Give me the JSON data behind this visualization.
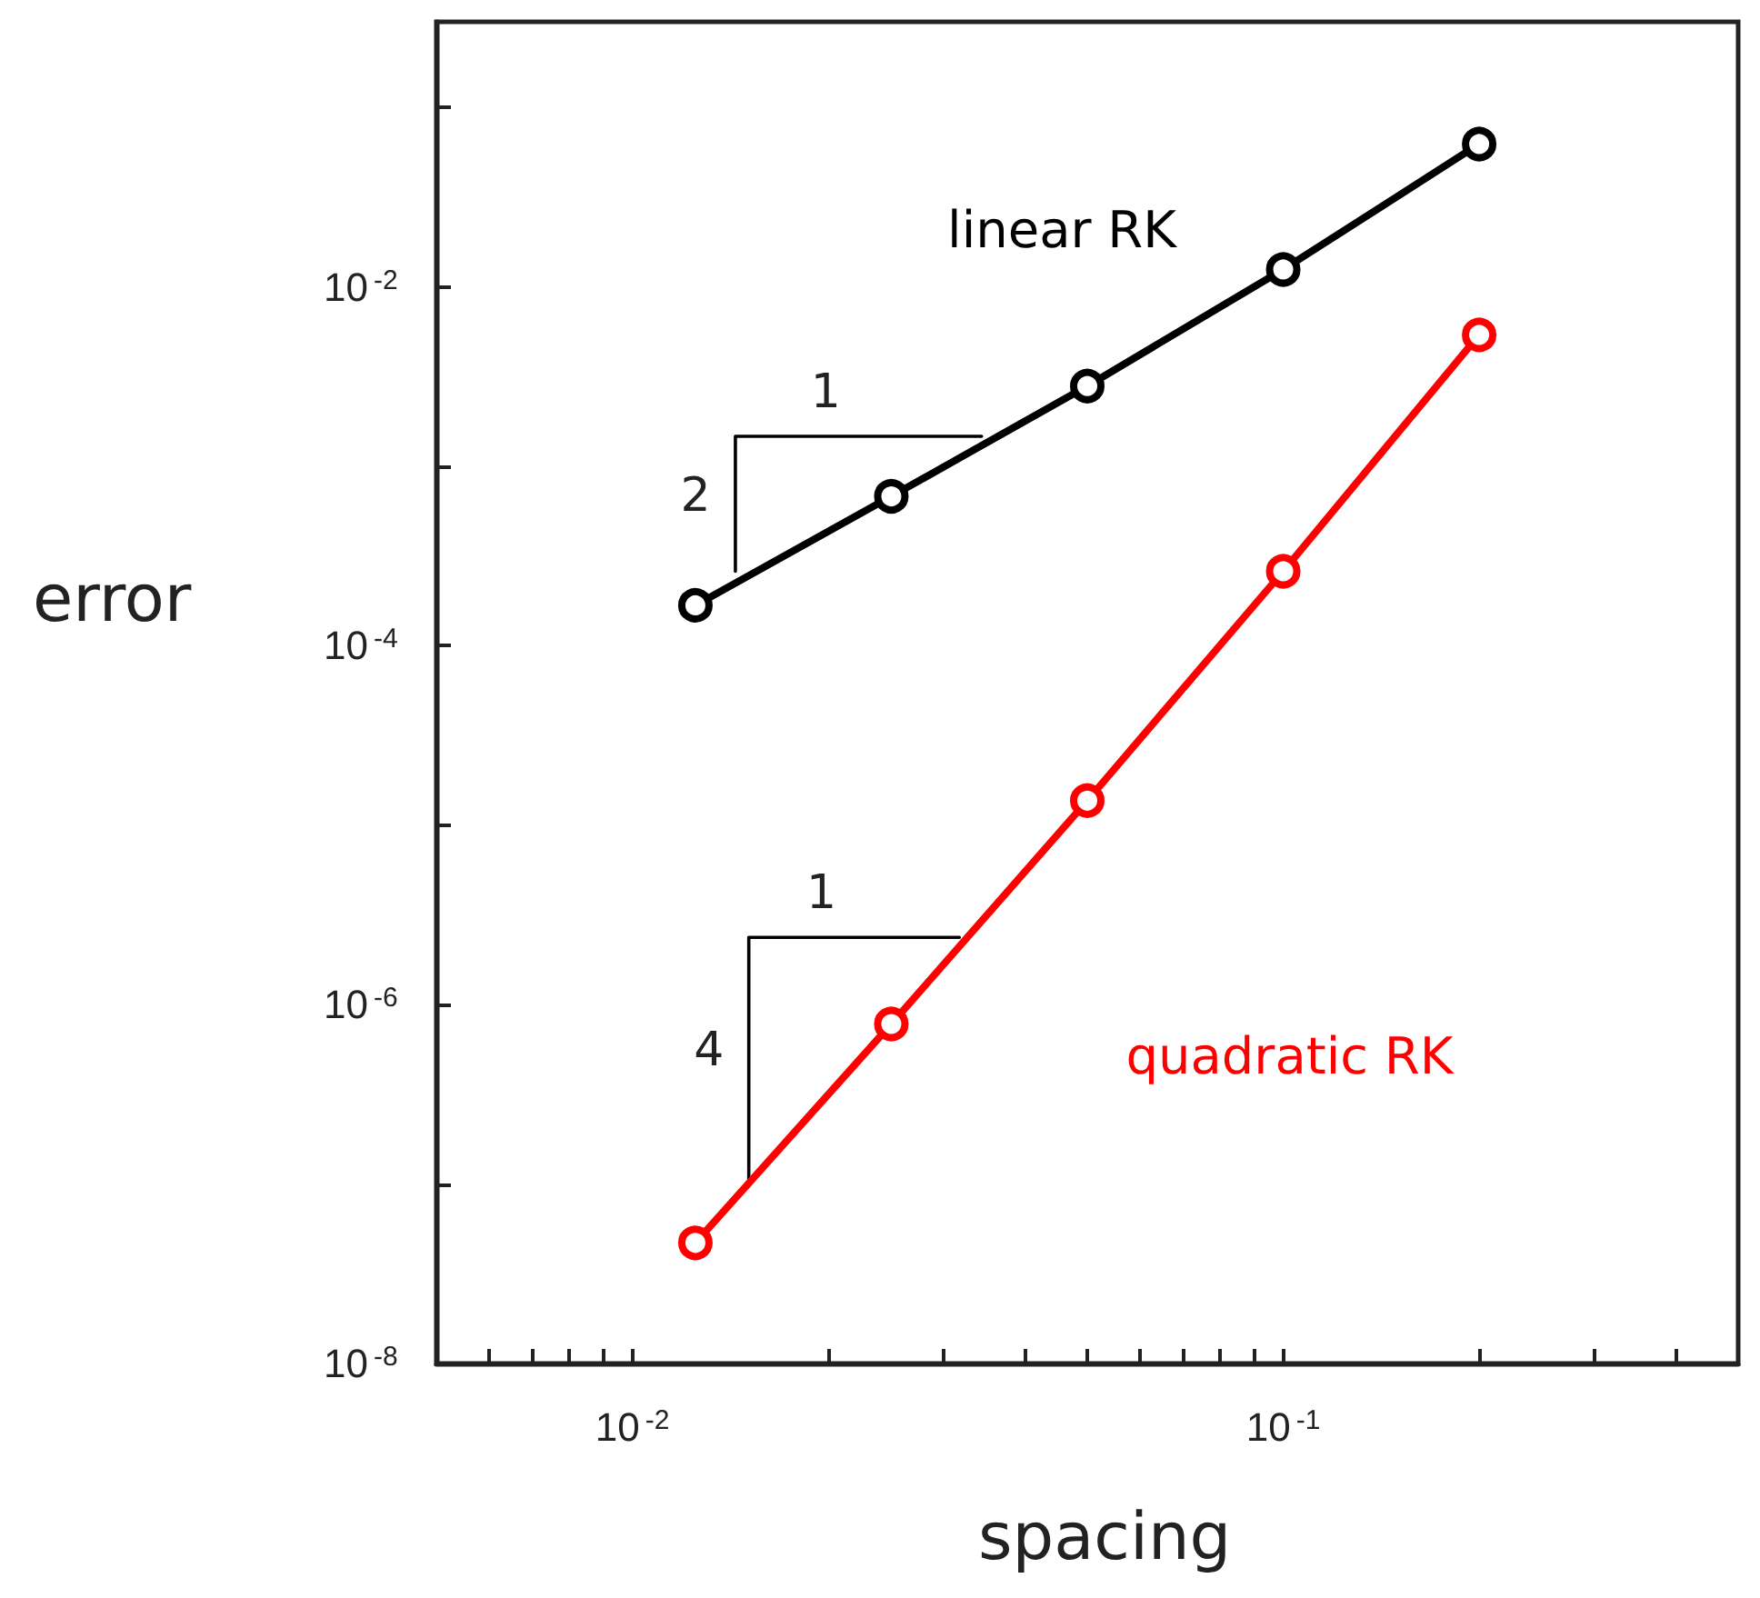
{
  "chart_data": {
    "type": "line",
    "xlabel": "spacing",
    "ylabel": "error",
    "log": "xy",
    "grid": false,
    "legend": false,
    "marker": "circle",
    "line_style": "solid",
    "xlim": [
      0.005,
      0.5
    ],
    "ylim": [
      1e-08,
      0.3
    ],
    "xticks": [
      {
        "value": 0.005,
        "label": null
      },
      {
        "value": 0.006,
        "label": null
      },
      {
        "value": 0.007,
        "label": null
      },
      {
        "value": 0.008,
        "label": null
      },
      {
        "value": 0.009,
        "label": null
      },
      {
        "value": 0.01,
        "label": "10$^{-2}$"
      },
      {
        "value": 0.02,
        "label": null
      },
      {
        "value": 0.03,
        "label": null
      },
      {
        "value": 0.04,
        "label": null
      },
      {
        "value": 0.05,
        "label": null
      },
      {
        "value": 0.06,
        "label": null
      },
      {
        "value": 0.07,
        "label": null
      },
      {
        "value": 0.08,
        "label": null
      },
      {
        "value": 0.09,
        "label": null
      },
      {
        "value": 0.1,
        "label": "10$^{-1}$"
      },
      {
        "value": 0.2,
        "label": null
      },
      {
        "value": 0.3,
        "label": null
      },
      {
        "value": 0.4,
        "label": null
      },
      {
        "value": 0.5,
        "label": null
      }
    ],
    "yticks": [
      {
        "value": 1e-08,
        "label": "10$^{-8}$"
      },
      {
        "value": 1e-07,
        "label": null
      },
      {
        "value": 1e-06,
        "label": "10$^{-6}$"
      },
      {
        "value": 1e-05,
        "label": null
      },
      {
        "value": 0.0001,
        "label": "10$^{-4}$"
      },
      {
        "value": 0.001,
        "label": null
      },
      {
        "value": 0.01,
        "label": "10$^{-2}$"
      },
      {
        "value": 0.1,
        "label": null
      }
    ],
    "x": [
      0.0125,
      0.025,
      0.05,
      0.1,
      0.2
    ],
    "series": [
      {
        "name": "linear RK",
        "color": "#000000",
        "values": [
          0.000168,
          0.00068,
          0.0028,
          0.0125,
          0.0625
        ]
      },
      {
        "name": "quadratic RK",
        "color": "#ff0000",
        "values": [
          4.7e-08,
          7.8e-07,
          1.37e-05,
          0.00026,
          0.0054
        ]
      },
      {
        "color": "#000000",
        "marker": "none",
        "x": [
          0.0144,
          0.0144,
          0.0344
        ],
        "values": [
          0.00026,
          0.00147,
          0.00147
        ]
      },
      {
        "color": "#000000",
        "marker": "none",
        "x": [
          0.0151,
          0.0151,
          0.0318
        ],
        "values": [
          1.06e-07,
          2.37e-06,
          2.37e-06
        ]
      }
    ],
    "annotations": [
      "1",
      "2",
      "1",
      "4"
    ]
  }
}
